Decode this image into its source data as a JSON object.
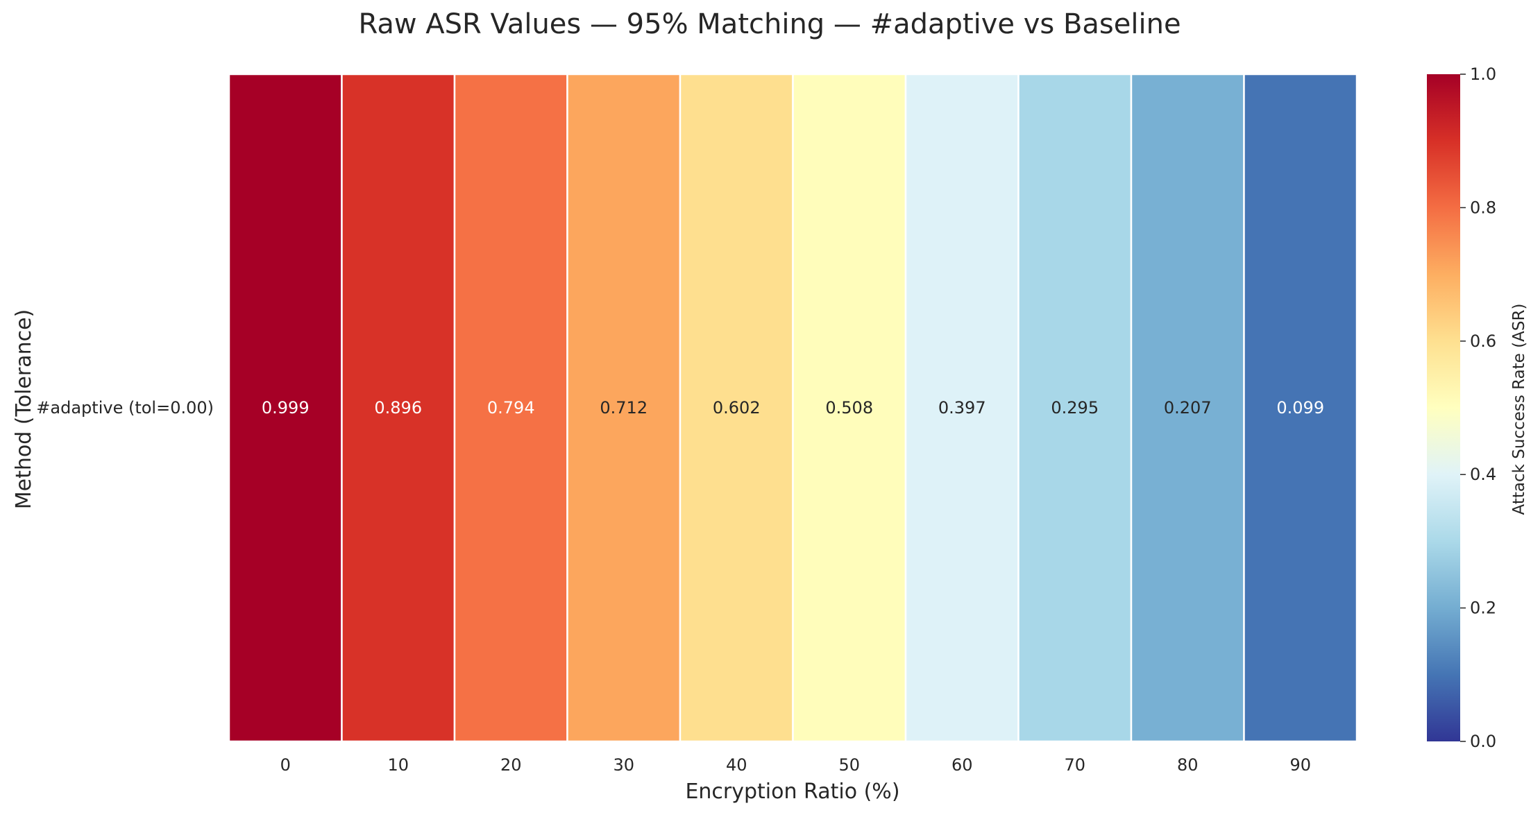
{
  "chart_data": {
    "type": "heatmap",
    "title": "Raw ASR Values — 95% Matching — #adaptive vs Baseline",
    "xlabel": "Encryption Ratio (%)",
    "ylabel": "Method (Tolerance)",
    "x": [
      "0",
      "10",
      "20",
      "30",
      "40",
      "50",
      "60",
      "70",
      "80",
      "90"
    ],
    "y": [
      "#adaptive (tol=0.00)"
    ],
    "values": [
      [
        0.999,
        0.896,
        0.794,
        0.712,
        0.602,
        0.508,
        0.397,
        0.295,
        0.207,
        0.099
      ]
    ],
    "cell_labels": [
      [
        "0.999",
        "0.896",
        "0.794",
        "0.712",
        "0.602",
        "0.508",
        "0.397",
        "0.295",
        "0.207",
        "0.099"
      ]
    ],
    "colorbar": {
      "label": "Attack Success Rate (ASR)",
      "range": [
        0,
        1
      ],
      "ticks": [
        "0.0",
        "0.2",
        "0.4",
        "0.6",
        "0.8",
        "1.0"
      ],
      "colormap": "RdYlBu_r"
    },
    "colors": {
      "low": "#313695",
      "mid": "#ffffbf",
      "high": "#a50026",
      "cell_border": "#ffffff"
    }
  }
}
